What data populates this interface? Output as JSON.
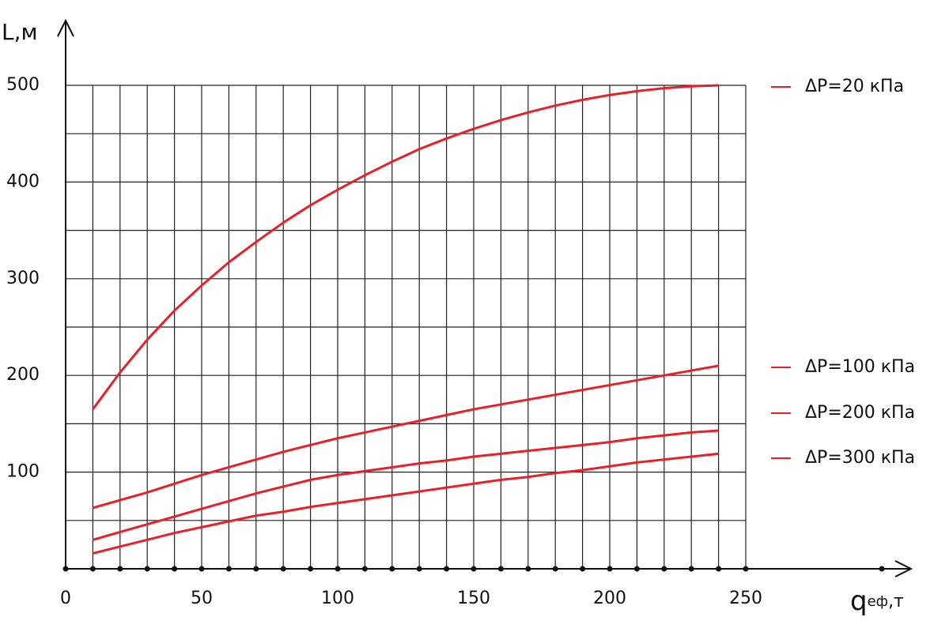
{
  "chart_data": {
    "type": "line",
    "y_label": "L,м",
    "x_label": {
      "main": "q",
      "sub": "еф",
      "unit": ",т"
    },
    "x": [
      10,
      20,
      30,
      40,
      50,
      60,
      70,
      80,
      90,
      100,
      110,
      120,
      130,
      140,
      150,
      160,
      170,
      180,
      190,
      200,
      210,
      220,
      230,
      240
    ],
    "series": [
      {
        "name": "ΔP=20 кПа",
        "color": "#e8202a",
        "values": [
          165,
          203,
          237,
          267,
          293,
          317,
          338,
          358,
          376,
          392,
          407,
          421,
          434,
          445,
          455,
          464,
          472,
          479,
          485,
          490,
          494,
          497,
          499,
          500
        ]
      },
      {
        "name": "ΔP=100 кПа",
        "color": "#e8202a",
        "values": [
          63,
          71,
          79,
          88,
          97,
          105,
          113,
          121,
          128,
          135,
          141,
          147,
          153,
          159,
          165,
          170,
          175,
          180,
          185,
          190,
          195,
          200,
          205,
          210
        ]
      },
      {
        "name": "ΔP=200 кПа",
        "color": "#e8202a",
        "values": [
          30,
          38,
          46,
          54,
          62,
          70,
          78,
          85,
          92,
          97,
          101,
          105,
          109,
          112,
          116,
          119,
          122,
          125,
          128,
          131,
          135,
          138,
          141,
          143
        ]
      },
      {
        "name": "ΔP=300 кПа",
        "color": "#e8202a",
        "values": [
          16,
          23,
          30,
          37,
          43,
          49,
          55,
          59,
          64,
          68,
          72,
          76,
          80,
          84,
          88,
          92,
          95,
          99,
          102,
          106,
          110,
          113,
          116,
          119
        ]
      }
    ],
    "xlim": [
      0,
      300
    ],
    "ylim": [
      0,
      500
    ],
    "xticks": [
      0,
      50,
      100,
      150,
      200,
      250
    ],
    "yticks": [
      100,
      200,
      300,
      400,
      500
    ],
    "x_minor_ticks": [
      10,
      20,
      30,
      40,
      60,
      70,
      80,
      90,
      110,
      120,
      130,
      140,
      160,
      170,
      180,
      190,
      210,
      220,
      230,
      240
    ],
    "y_minor_ticks": [
      50,
      150,
      250,
      350,
      450
    ],
    "grid": true,
    "legend": "right"
  }
}
